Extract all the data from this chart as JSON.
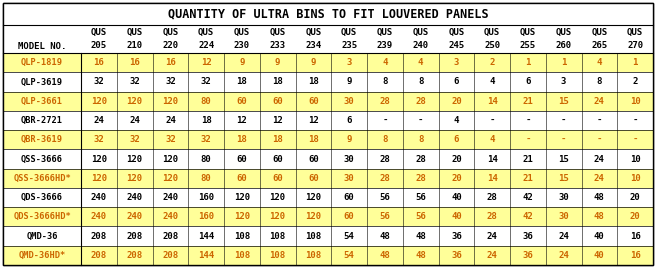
{
  "title": "QUANTITY OF ULTRA BINS TO FIT LOUVERED PANELS",
  "col_headers_top": [
    "QUS",
    "QUS",
    "QUS",
    "QUS",
    "QUS",
    "QUS",
    "QUS",
    "QUS",
    "QUS",
    "QUS",
    "QUS",
    "QUS",
    "QUS",
    "QUS",
    "QUS",
    "QUS"
  ],
  "col_headers_bot": [
    "205",
    "210",
    "220",
    "224",
    "230",
    "233",
    "234",
    "235",
    "239",
    "240",
    "245",
    "250",
    "255",
    "260",
    "265",
    "270"
  ],
  "row_label": "MODEL NO.",
  "rows": [
    {
      "model": "QLP-1819",
      "values": [
        "16",
        "16",
        "16",
        "12",
        "9",
        "9",
        "9",
        "3",
        "4",
        "4",
        "3",
        "2",
        "1",
        "1",
        "4",
        "1"
      ],
      "highlight": true
    },
    {
      "model": "QLP-3619",
      "values": [
        "32",
        "32",
        "32",
        "32",
        "18",
        "18",
        "18",
        "9",
        "8",
        "8",
        "6",
        "4",
        "6",
        "3",
        "8",
        "2"
      ],
      "highlight": false
    },
    {
      "model": "QLP-3661",
      "values": [
        "120",
        "120",
        "120",
        "80",
        "60",
        "60",
        "60",
        "30",
        "28",
        "28",
        "20",
        "14",
        "21",
        "15",
        "24",
        "10"
      ],
      "highlight": true
    },
    {
      "model": "QBR-2721",
      "values": [
        "24",
        "24",
        "24",
        "18",
        "12",
        "12",
        "12",
        "6",
        "-",
        "-",
        "4",
        "-",
        "-",
        "-",
        "-",
        "-"
      ],
      "highlight": false
    },
    {
      "model": "QBR-3619",
      "values": [
        "32",
        "32",
        "32",
        "32",
        "18",
        "18",
        "18",
        "9",
        "8",
        "8",
        "6",
        "4",
        "-",
        "-",
        "-",
        "-"
      ],
      "highlight": true
    },
    {
      "model": "QSS-3666",
      "values": [
        "120",
        "120",
        "120",
        "80",
        "60",
        "60",
        "60",
        "30",
        "28",
        "28",
        "20",
        "14",
        "21",
        "15",
        "24",
        "10"
      ],
      "highlight": false
    },
    {
      "model": "QSS-3666HD*",
      "values": [
        "120",
        "120",
        "120",
        "80",
        "60",
        "60",
        "60",
        "30",
        "28",
        "28",
        "20",
        "14",
        "21",
        "15",
        "24",
        "10"
      ],
      "highlight": true
    },
    {
      "model": "QDS-3666",
      "values": [
        "240",
        "240",
        "240",
        "160",
        "120",
        "120",
        "120",
        "60",
        "56",
        "56",
        "40",
        "28",
        "42",
        "30",
        "48",
        "20"
      ],
      "highlight": false
    },
    {
      "model": "QDS-3666HD*",
      "values": [
        "240",
        "240",
        "240",
        "160",
        "120",
        "120",
        "120",
        "60",
        "56",
        "56",
        "40",
        "28",
        "42",
        "30",
        "48",
        "20"
      ],
      "highlight": true
    },
    {
      "model": "QMD-36",
      "values": [
        "208",
        "208",
        "208",
        "144",
        "108",
        "108",
        "108",
        "54",
        "48",
        "48",
        "36",
        "24",
        "36",
        "24",
        "40",
        "16"
      ],
      "highlight": false
    },
    {
      "model": "QMD-36HD*",
      "values": [
        "208",
        "208",
        "208",
        "144",
        "108",
        "108",
        "108",
        "54",
        "48",
        "48",
        "36",
        "24",
        "36",
        "24",
        "40",
        "16"
      ],
      "highlight": true
    }
  ],
  "highlight_color": "#FFFF99",
  "white_color": "#FFFFFF",
  "text_color_normal": "#000000",
  "text_color_highlight": "#CC6600",
  "font_size_title": 8.5,
  "font_size_header": 6.5,
  "font_size_data": 6.5,
  "font_size_model": 6.2
}
